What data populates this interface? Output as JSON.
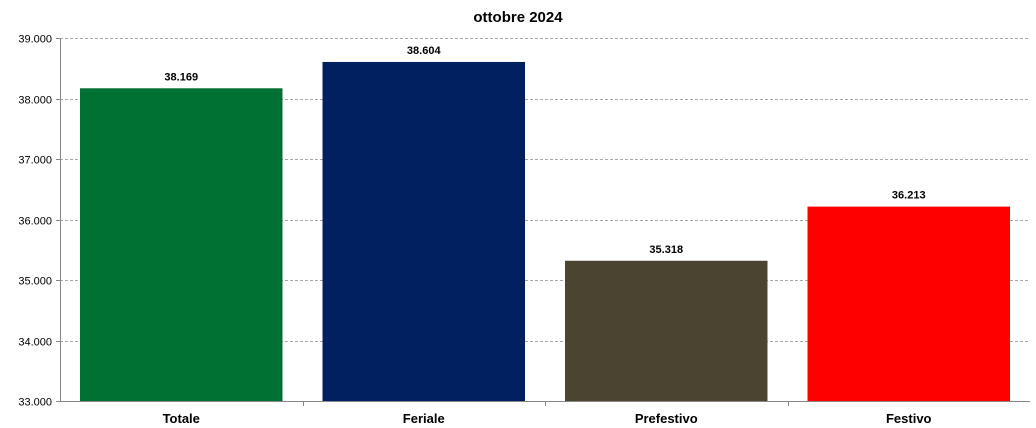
{
  "chart_data": {
    "type": "bar",
    "title": "ottobre 2024",
    "xlabel": "",
    "ylabel": "",
    "categories": [
      "Totale",
      "Feriale",
      "Prefestivo",
      "Festivo"
    ],
    "values": [
      38169,
      38604,
      35318,
      36213
    ],
    "data_labels": [
      "38.169",
      "38.604",
      "35.318",
      "36.213"
    ],
    "colors": [
      "#007033",
      "#002060",
      "#4a4430",
      "#ff0000"
    ],
    "ylim": [
      33000,
      39000
    ],
    "yticks": [
      33000,
      34000,
      35000,
      36000,
      37000,
      38000,
      39000
    ],
    "ytick_labels": [
      "33.000",
      "34.000",
      "35.000",
      "36.000",
      "37.000",
      "38.000",
      "39.000"
    ],
    "grid": true,
    "legend": "none"
  }
}
